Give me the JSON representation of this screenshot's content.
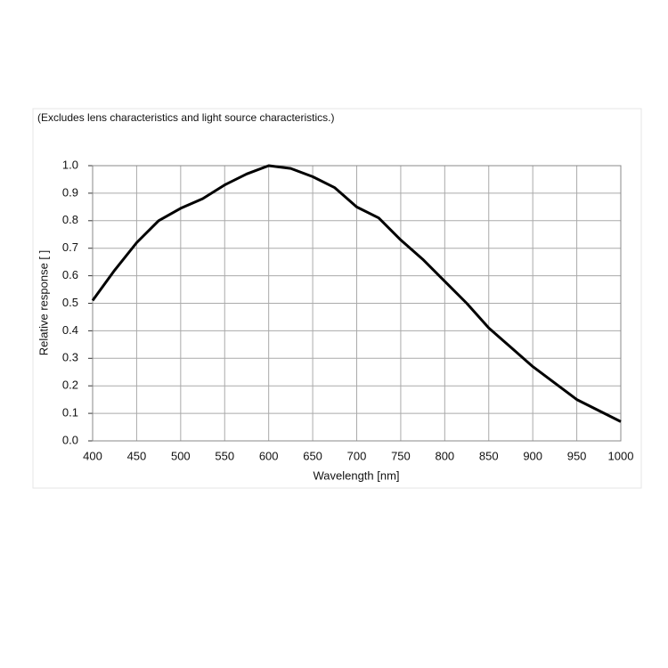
{
  "chart_data": {
    "type": "line",
    "annotation": "(Excludes lens characteristics and light source characteristics.)",
    "x_label": "Wavelength [nm]",
    "y_label": "Relative response [ ]",
    "x": [
      400,
      425,
      450,
      475,
      500,
      525,
      550,
      575,
      600,
      625,
      650,
      675,
      700,
      725,
      750,
      775,
      800,
      825,
      850,
      875,
      900,
      925,
      950,
      975,
      1000
    ],
    "series": [
      {
        "name": "Relative response",
        "color": "#000000",
        "values": [
          0.51,
          0.62,
          0.72,
          0.8,
          0.845,
          0.88,
          0.93,
          0.97,
          1.0,
          0.99,
          0.96,
          0.92,
          0.85,
          0.81,
          0.73,
          0.66,
          0.58,
          0.5,
          0.41,
          0.34,
          0.27,
          0.21,
          0.15,
          0.11,
          0.07
        ]
      }
    ],
    "xlim": [
      400,
      1000
    ],
    "xticks": [
      400,
      450,
      500,
      550,
      600,
      650,
      700,
      750,
      800,
      850,
      900,
      950,
      1000
    ],
    "ylim": [
      0,
      1
    ],
    "yticks": [
      {
        "value": 0,
        "label": "0.0"
      },
      0.1,
      0.2,
      0.3,
      0.4,
      0.5,
      0.6,
      0.7,
      0.8,
      0.9,
      {
        "value": 1,
        "label": "1.0"
      }
    ],
    "grid": true
  }
}
